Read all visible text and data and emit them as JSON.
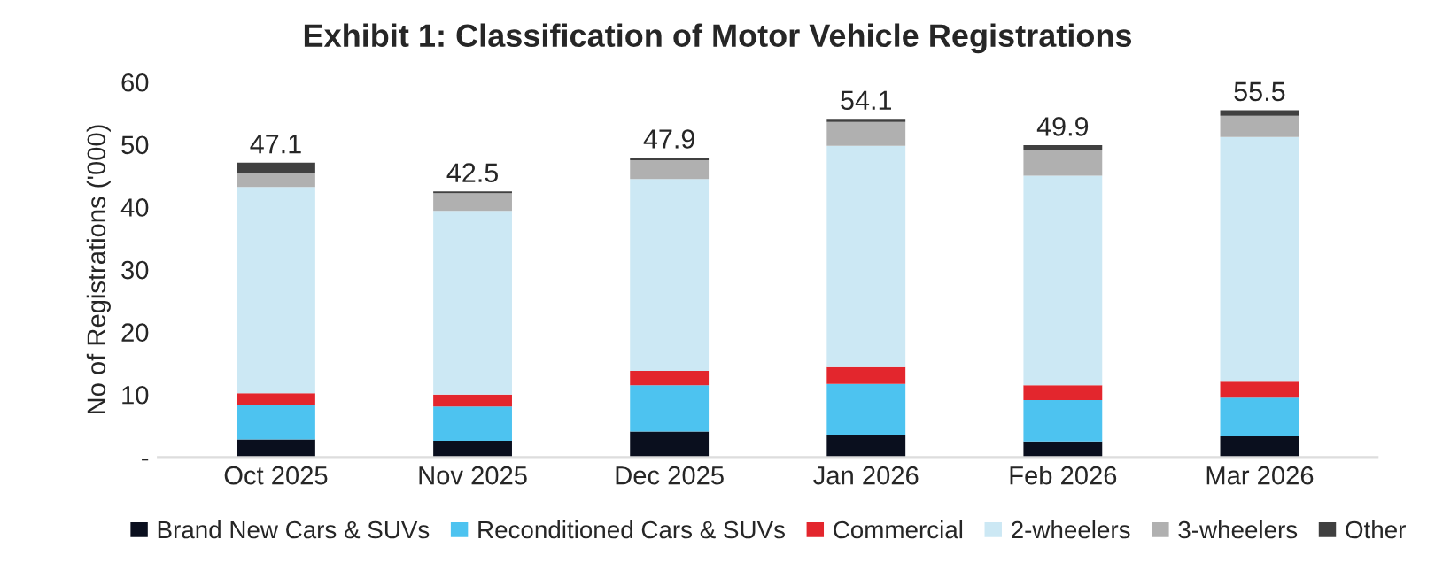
{
  "chart_data": {
    "type": "bar",
    "title": "Exhibit 1: Classification of Motor Vehicle Registrations",
    "ylabel": "No of Registrations ('000)",
    "categories": [
      "Oct 2025",
      "Nov 2025",
      "Dec 2025",
      "Jan 2026",
      "Feb 2026",
      "Mar 2026"
    ],
    "stacked": true,
    "series": [
      {
        "name": "Brand New Cars & SUVs",
        "color": "#0a0f1e",
        "values": [
          2.8,
          2.6,
          4.1,
          3.6,
          2.5,
          3.3
        ]
      },
      {
        "name": "Reconditioned Cars & SUVs",
        "color": "#4dc3f0",
        "values": [
          5.5,
          5.5,
          7.4,
          8.1,
          6.6,
          6.2
        ]
      },
      {
        "name": "Commercial",
        "color": "#e3262d",
        "values": [
          1.9,
          1.9,
          2.3,
          2.7,
          2.4,
          2.7
        ]
      },
      {
        "name": "2-wheelers",
        "color": "#cce8f4",
        "values": [
          33.0,
          29.4,
          30.7,
          35.4,
          33.5,
          39.0
        ]
      },
      {
        "name": "3-wheelers",
        "color": "#b0b0b0",
        "values": [
          2.3,
          2.8,
          3.0,
          3.8,
          4.1,
          3.4
        ]
      },
      {
        "name": "Other",
        "color": "#404040",
        "values": [
          1.6,
          0.3,
          0.4,
          0.5,
          0.8,
          0.9
        ]
      }
    ],
    "totals": [
      "47.1",
      "42.5",
      "47.9",
      "54.1",
      "49.9",
      "55.5"
    ],
    "ylim": [
      0,
      60
    ],
    "yticks": [
      {
        "value": 0,
        "label": "-"
      },
      10,
      20,
      30,
      40,
      50,
      60
    ],
    "grid": false,
    "legend": "bottom"
  }
}
